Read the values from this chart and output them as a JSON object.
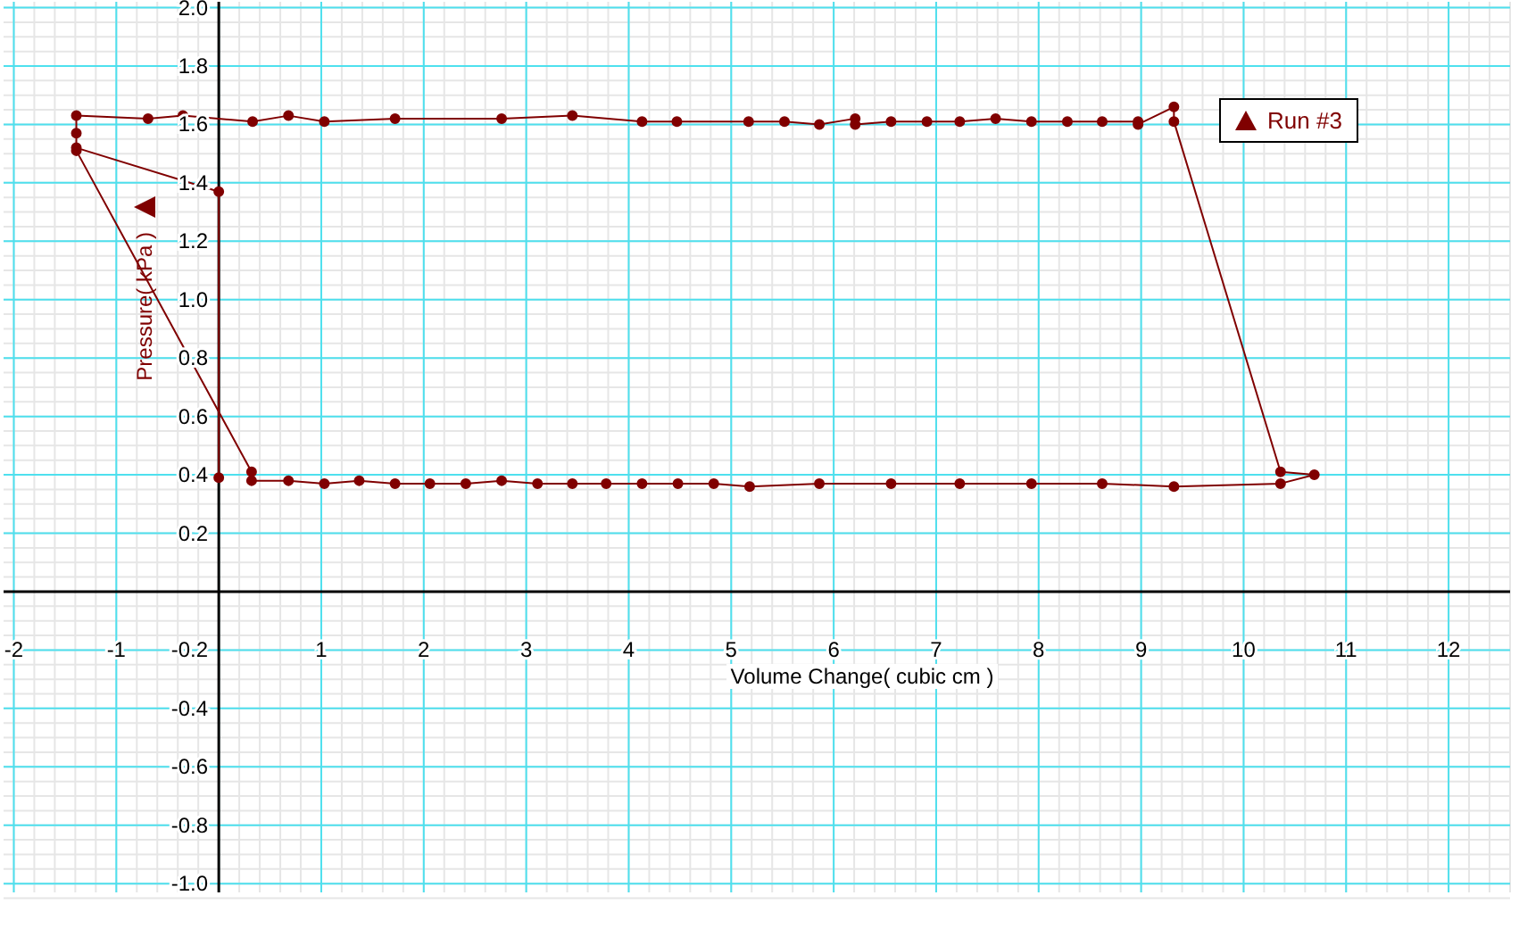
{
  "chart_data": {
    "type": "line",
    "xlabel": "Volume Change( cubic cm )",
    "ylabel": "Pressure( kPa )",
    "xlim": [
      -2.1,
      12.6
    ],
    "ylim": [
      -1.03,
      2.02
    ],
    "xticks": [
      -2,
      -1,
      {
        "value": 0,
        "label": null
      },
      1,
      2,
      3,
      4,
      5,
      6,
      7,
      8,
      9,
      10,
      11,
      12
    ],
    "yticks": [
      {
        "value": -1,
        "label": "-1.0"
      },
      -0.8,
      -0.6,
      -0.4,
      -0.2,
      {
        "value": 0,
        "label": null
      },
      0.2,
      0.4,
      0.6,
      0.8,
      {
        "value": 1,
        "label": "1.0"
      },
      1.2,
      1.4,
      1.6,
      1.8,
      {
        "value": 2,
        "label": "2.0"
      }
    ],
    "grid": true,
    "legend": "top right",
    "marker": "circle",
    "line_style": "solid",
    "series": [
      {
        "name": "Run #3",
        "color": "#800000",
        "x": [
          -1.39,
          0.32,
          0.32,
          0.68,
          1.03,
          1.37,
          1.72,
          2.06,
          2.41,
          2.76,
          3.11,
          3.45,
          3.78,
          4.13,
          4.48,
          4.83,
          5.18,
          5.86,
          6.56,
          7.23,
          7.93,
          8.62,
          9.32,
          10.36,
          10.69,
          10.36,
          9.32,
          9.32,
          8.97,
          8.97,
          8.62,
          8.28,
          7.93,
          7.58,
          7.23,
          6.91,
          6.56,
          6.21,
          6.21,
          5.86,
          5.52,
          5.17,
          4.47,
          4.13,
          3.45,
          2.76,
          1.72,
          1.03,
          0.68,
          0.33,
          -0.35,
          -0.69,
          -1.39,
          -1.39,
          -1.39,
          0,
          0
        ],
        "values": [
          1.51,
          0.41,
          0.38,
          0.38,
          0.37,
          0.38,
          0.37,
          0.37,
          0.37,
          0.38,
          0.37,
          0.37,
          0.37,
          0.37,
          0.37,
          0.37,
          0.36,
          0.37,
          0.37,
          0.37,
          0.37,
          0.37,
          0.36,
          0.37,
          0.4,
          0.41,
          1.61,
          1.66,
          1.6,
          1.61,
          1.61,
          1.61,
          1.61,
          1.62,
          1.61,
          1.61,
          1.61,
          1.6,
          1.62,
          1.6,
          1.61,
          1.61,
          1.61,
          1.61,
          1.63,
          1.62,
          1.62,
          1.61,
          1.63,
          1.61,
          1.63,
          1.62,
          1.63,
          1.57,
          1.52,
          1.37,
          0.39
        ]
      }
    ]
  }
}
